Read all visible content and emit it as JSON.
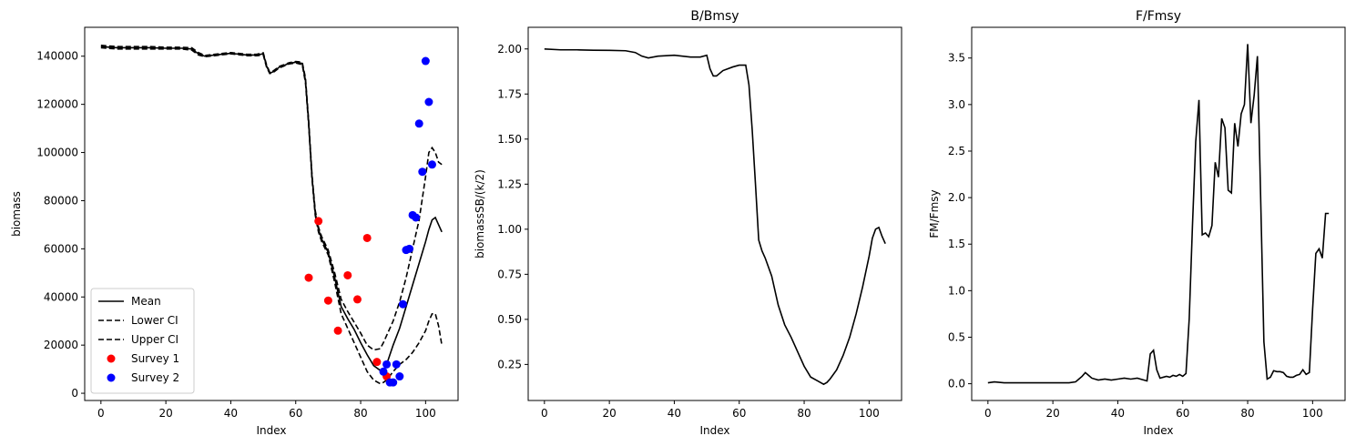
{
  "chart_data": [
    {
      "type": "line",
      "title": "",
      "xlabel": "Index",
      "ylabel": "biomass",
      "xlim": [
        -5,
        110
      ],
      "ylim": [
        -3000,
        152000
      ],
      "xticks": [
        0,
        20,
        40,
        60,
        80,
        100
      ],
      "yticks": [
        0,
        20000,
        40000,
        60000,
        80000,
        100000,
        120000,
        140000
      ],
      "legend_position": "lower-left",
      "legend": [
        "Mean",
        "Lower CI",
        "Upper CI",
        "Survey 1",
        "Survey 2"
      ],
      "series": [
        {
          "name": "Mean",
          "style": "solid",
          "color": "#000000",
          "x": [
            0,
            5,
            10,
            15,
            20,
            25,
            28,
            30,
            32,
            35,
            40,
            45,
            48,
            50,
            51,
            52,
            53,
            55,
            58,
            60,
            62,
            63,
            64,
            65,
            66,
            67,
            68,
            70,
            72,
            74,
            76,
            78,
            80,
            82,
            84,
            86,
            87,
            88,
            90,
            92,
            94,
            96,
            98,
            100,
            101,
            102,
            103,
            104,
            105
          ],
          "y": [
            144000,
            143500,
            143500,
            143500,
            143300,
            143300,
            143000,
            141000,
            140000,
            140500,
            141200,
            140500,
            140500,
            141000,
            136000,
            133000,
            133500,
            135500,
            137000,
            137500,
            137000,
            130000,
            112000,
            90000,
            75000,
            68000,
            64000,
            58500,
            48000,
            36000,
            31000,
            26500,
            21000,
            16000,
            11500,
            9500,
            9000,
            12000,
            20000,
            27000,
            36000,
            45000,
            54000,
            63000,
            68000,
            72000,
            73000,
            70000,
            67000
          ]
        },
        {
          "name": "Lower CI",
          "style": "dashed",
          "color": "#000000",
          "x": [
            0,
            5,
            10,
            15,
            20,
            25,
            28,
            30,
            32,
            35,
            40,
            45,
            48,
            50,
            51,
            52,
            53,
            55,
            58,
            60,
            62,
            63,
            64,
            65,
            66,
            67,
            68,
            70,
            72,
            74,
            76,
            78,
            80,
            82,
            84,
            86,
            87,
            88,
            90,
            92,
            94,
            96,
            98,
            100,
            101,
            102,
            103,
            104,
            105
          ],
          "y": [
            143500,
            143000,
            143000,
            143000,
            143000,
            143000,
            142500,
            140500,
            139800,
            140200,
            141000,
            140200,
            140200,
            140500,
            135500,
            132800,
            133200,
            135200,
            136800,
            137200,
            136500,
            129000,
            111000,
            89000,
            74000,
            67000,
            63000,
            57500,
            46000,
            33000,
            27000,
            21000,
            15000,
            9000,
            5500,
            4000,
            4500,
            5500,
            9000,
            12000,
            14000,
            17000,
            21000,
            26000,
            30000,
            33000,
            33000,
            28000,
            20000
          ]
        },
        {
          "name": "Upper CI",
          "style": "dashed",
          "color": "#000000",
          "x": [
            0,
            5,
            10,
            15,
            20,
            25,
            28,
            30,
            32,
            35,
            40,
            45,
            48,
            50,
            51,
            52,
            53,
            55,
            58,
            60,
            62,
            63,
            64,
            65,
            66,
            67,
            68,
            70,
            72,
            74,
            76,
            78,
            80,
            82,
            84,
            86,
            87,
            88,
            90,
            92,
            94,
            96,
            98,
            100,
            101,
            102,
            103,
            104,
            105
          ],
          "y": [
            144500,
            144000,
            144000,
            144000,
            143700,
            143700,
            143500,
            141500,
            140300,
            140800,
            141500,
            140800,
            140800,
            141400,
            136500,
            133300,
            133800,
            135800,
            137300,
            137800,
            137500,
            131000,
            113000,
            91000,
            76000,
            69000,
            65000,
            59500,
            50000,
            39000,
            34000,
            29500,
            25000,
            20000,
            18000,
            18500,
            21000,
            24000,
            30000,
            38000,
            48000,
            60000,
            72000,
            90000,
            100000,
            102000,
            100000,
            96000,
            95000
          ]
        }
      ],
      "points": [
        {
          "name": "Survey 1",
          "color": "#ff0000",
          "x": [
            64,
            67,
            70,
            73,
            76,
            79,
            82,
            85,
            88
          ],
          "y": [
            48000,
            71500,
            38500,
            26000,
            49000,
            39000,
            64500,
            13000,
            7000
          ]
        },
        {
          "name": "Survey 2",
          "color": "#0000ff",
          "x": [
            87,
            88,
            89,
            90,
            91,
            92,
            93,
            94,
            95,
            96,
            97,
            98,
            99,
            100,
            101,
            102
          ],
          "y": [
            9000,
            12000,
            4500,
            4500,
            12000,
            7000,
            37000,
            59500,
            60000,
            74000,
            73000,
            112000,
            92000,
            138000,
            121000,
            95000
          ]
        }
      ]
    },
    {
      "type": "line",
      "title": "B/Bmsy",
      "xlabel": "Index",
      "ylabel": "biomassSB/(k/2)",
      "xlim": [
        -5,
        110
      ],
      "ylim": [
        0.05,
        2.12
      ],
      "xticks": [
        0,
        20,
        40,
        60,
        80,
        100
      ],
      "yticks": [
        0.25,
        0.5,
        0.75,
        1.0,
        1.25,
        1.5,
        1.75,
        2.0
      ],
      "series": [
        {
          "name": "",
          "style": "solid",
          "color": "#000000",
          "x": [
            0,
            5,
            10,
            15,
            20,
            25,
            28,
            30,
            32,
            35,
            40,
            45,
            48,
            50,
            51,
            52,
            53,
            55,
            58,
            60,
            62,
            63,
            64,
            65,
            66,
            67,
            68,
            70,
            72,
            74,
            76,
            78,
            80,
            82,
            84,
            86,
            87,
            88,
            90,
            92,
            94,
            96,
            98,
            100,
            101,
            102,
            103,
            104,
            105
          ],
          "y": [
            2.0,
            1.995,
            1.995,
            1.993,
            1.992,
            1.99,
            1.98,
            1.96,
            1.95,
            1.96,
            1.965,
            1.955,
            1.955,
            1.965,
            1.89,
            1.85,
            1.85,
            1.88,
            1.9,
            1.91,
            1.91,
            1.8,
            1.55,
            1.25,
            0.94,
            0.88,
            0.84,
            0.74,
            0.58,
            0.47,
            0.4,
            0.32,
            0.24,
            0.18,
            0.16,
            0.14,
            0.15,
            0.17,
            0.22,
            0.3,
            0.4,
            0.53,
            0.68,
            0.85,
            0.95,
            1.0,
            1.01,
            0.96,
            0.92
          ]
        }
      ]
    },
    {
      "type": "line",
      "title": "F/Fmsy",
      "xlabel": "Index",
      "ylabel": "FM/Fmsy",
      "xlim": [
        -5,
        110
      ],
      "ylim": [
        -0.18,
        3.83
      ],
      "xticks": [
        0,
        20,
        40,
        60,
        80,
        100
      ],
      "yticks": [
        0.0,
        0.5,
        1.0,
        1.5,
        2.0,
        2.5,
        3.0,
        3.5
      ],
      "series": [
        {
          "name": "",
          "style": "solid",
          "color": "#000000",
          "x": [
            0,
            2,
            5,
            8,
            10,
            15,
            20,
            25,
            27,
            28,
            29,
            30,
            31,
            32,
            34,
            36,
            38,
            40,
            42,
            44,
            46,
            47,
            48,
            49,
            50,
            51,
            52,
            53,
            54,
            55,
            56,
            57,
            58,
            59,
            60,
            61,
            62,
            63,
            64,
            65,
            66,
            67,
            68,
            69,
            70,
            71,
            72,
            73,
            74,
            75,
            76,
            77,
            78,
            79,
            80,
            81,
            82,
            83,
            84,
            85,
            86,
            87,
            88,
            89,
            90,
            91,
            92,
            93,
            94,
            95,
            96,
            97,
            98,
            99,
            100,
            101,
            102,
            103,
            104,
            105
          ],
          "y": [
            0.01,
            0.02,
            0.01,
            0.01,
            0.01,
            0.01,
            0.01,
            0.01,
            0.02,
            0.05,
            0.08,
            0.12,
            0.09,
            0.06,
            0.04,
            0.05,
            0.04,
            0.05,
            0.06,
            0.05,
            0.06,
            0.05,
            0.04,
            0.03,
            0.32,
            0.36,
            0.15,
            0.06,
            0.07,
            0.08,
            0.07,
            0.09,
            0.08,
            0.1,
            0.08,
            0.11,
            0.7,
            1.7,
            2.6,
            3.05,
            1.6,
            1.62,
            1.58,
            1.7,
            2.38,
            2.22,
            2.85,
            2.75,
            2.08,
            2.05,
            2.8,
            2.55,
            2.9,
            3.0,
            3.65,
            2.8,
            3.1,
            3.52,
            2.0,
            0.45,
            0.05,
            0.07,
            0.14,
            0.13,
            0.13,
            0.12,
            0.08,
            0.07,
            0.07,
            0.09,
            0.1,
            0.15,
            0.1,
            0.12,
            0.8,
            1.4,
            1.45,
            1.35,
            1.83,
            1.83
          ]
        }
      ]
    }
  ]
}
